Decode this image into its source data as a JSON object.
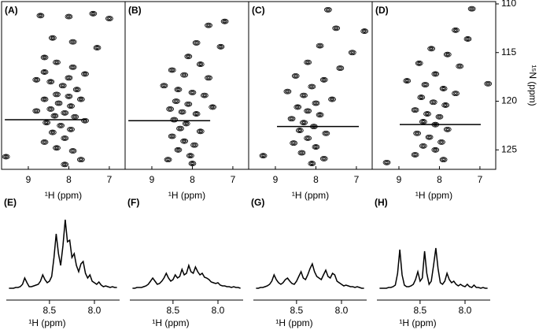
{
  "chart_data": [
    {
      "type": "scatter",
      "title": "(A)",
      "xlabel": "¹H (ppm)",
      "xlim": [
        9.66,
        6.61
      ],
      "xticks": [
        9,
        8,
        7
      ],
      "ylim": [
        127,
        109.76
      ],
      "x": [
        8.7,
        7.4,
        7.0,
        8.0,
        8.4,
        7.9,
        7.3,
        8.6,
        8.3,
        7.9,
        7.6,
        8.8,
        8.45,
        8.15,
        7.8,
        8.3,
        8.0,
        8.6,
        8.25,
        7.95,
        8.45,
        8.1,
        8.35,
        7.85,
        8.55,
        8.2,
        7.95,
        8.4,
        8.1,
        8.6,
        8.3,
        7.9,
        9.55,
        7.7,
        8.1,
        8.6,
        8.0,
        7.7,
        8.8,
        7.6
      ],
      "values": [
        111.2,
        111.0,
        111.5,
        111.3,
        113.5,
        113.9,
        114.5,
        115.5,
        116,
        116.5,
        117.2,
        117.8,
        118,
        118.4,
        118.8,
        119.3,
        119.5,
        119.8,
        120.2,
        120.5,
        120.8,
        121.2,
        121.5,
        121.6,
        122.2,
        122.5,
        122.9,
        123.2,
        123.8,
        124.2,
        124.8,
        125.1,
        125.7,
        126,
        126.5,
        117,
        117.6,
        119.8,
        121,
        122
      ],
      "cross_section": {
        "y": 121.9,
        "x": [
          9.58,
          7.56
        ]
      }
    },
    {
      "type": "scatter",
      "title": "(B)",
      "xlabel": "¹H (ppm)",
      "xlim": [
        9.66,
        6.61
      ],
      "xticks": [
        9,
        8,
        7
      ],
      "ylim": [
        127,
        109.76
      ],
      "x": [
        7.2,
        7.6,
        7.9,
        7.3,
        8.1,
        7.8,
        8.5,
        8.2,
        7.6,
        8.7,
        8.35,
        8.0,
        7.7,
        8.4,
        8.1,
        8.55,
        8.25,
        7.9,
        8.45,
        8.15,
        8.3,
        7.8,
        8.5,
        8.2,
        7.95,
        8.35,
        8.05,
        8.6,
        8.0,
        7.5
      ],
      "values": [
        111.8,
        112.2,
        114.0,
        114.4,
        115.4,
        116.2,
        116.8,
        117.3,
        117.6,
        118.4,
        118.8,
        119.1,
        119.4,
        120.0,
        120.3,
        120.8,
        121.1,
        121.3,
        121.9,
        122.3,
        122.8,
        123.1,
        123.6,
        124.1,
        124.5,
        125.0,
        125.6,
        126.0,
        126.4,
        120.6
      ],
      "cross_section": {
        "y": 122.0,
        "x": [
          9.58,
          7.56
        ]
      }
    },
    {
      "type": "scatter",
      "title": "(C)",
      "xlabel": "¹H (ppm)",
      "xlim": [
        9.66,
        6.61
      ],
      "xticks": [
        9,
        8,
        7
      ],
      "ylim": [
        127,
        109.76
      ],
      "x": [
        7.7,
        7.5,
        6.8,
        7.9,
        7.1,
        8.2,
        7.4,
        8.5,
        7.8,
        8.1,
        8.7,
        8.3,
        7.6,
        8.0,
        8.45,
        8.2,
        7.9,
        8.6,
        8.3,
        8.05,
        8.4,
        7.75,
        8.2,
        8.55,
        8.0,
        8.35,
        9.3,
        7.8,
        8.1
      ],
      "values": [
        110.6,
        112.5,
        112.8,
        114.3,
        115.0,
        116.0,
        116.6,
        117.4,
        117.8,
        118.5,
        119.0,
        119.4,
        119.8,
        120.2,
        120.6,
        121.0,
        121.4,
        121.8,
        122.2,
        122.6,
        123.0,
        123.3,
        123.8,
        124.3,
        124.7,
        125.3,
        125.6,
        125.9,
        126.4
      ],
      "cross_section": {
        "y": 122.6,
        "x": [
          8.96,
          6.94
        ]
      }
    },
    {
      "type": "scatter",
      "title": "(D)",
      "xlabel": "¹H (ppm)",
      "ylabel": "¹⁵N (ppm)",
      "xlim": [
        9.66,
        6.61
      ],
      "xticks": [
        9,
        8,
        7
      ],
      "ylim": [
        127,
        109.76
      ],
      "yticks": [
        110,
        115,
        120,
        125
      ],
      "x": [
        7.2,
        7.6,
        7.3,
        8.2,
        7.8,
        8.5,
        7.5,
        8.1,
        8.8,
        8.35,
        7.9,
        7.6,
        8.45,
        8.15,
        7.85,
        8.6,
        8.3,
        8.0,
        8.4,
        8.1,
        7.8,
        8.55,
        8.25,
        7.95,
        8.4,
        8.1,
        8.6,
        7.9,
        9.3,
        6.8
      ],
      "values": [
        110.5,
        112.7,
        113.6,
        114.6,
        115.2,
        116.1,
        116.4,
        117.2,
        117.9,
        118.3,
        118.7,
        119.2,
        119.6,
        120.1,
        120.4,
        120.9,
        121.3,
        121.6,
        122.1,
        122.4,
        122.9,
        123.3,
        123.7,
        124.2,
        124.6,
        125.0,
        125.5,
        126.0,
        126.3,
        118.2
      ],
      "cross_section": {
        "y": 122.4,
        "x": [
          8.98,
          6.98
        ]
      }
    },
    {
      "type": "line",
      "title": "(E)",
      "xlabel": "¹H (ppm)",
      "xlim": [
        8.98,
        7.72
      ],
      "xticks": [
        8.5,
        {
          "value": 8,
          "label": "8.0"
        }
      ],
      "x": [
        8.95,
        8.925,
        8.9,
        8.875,
        8.85,
        8.825,
        8.8,
        8.775,
        8.75,
        8.725,
        8.7,
        8.675,
        8.65,
        8.625,
        8.6,
        8.575,
        8.55,
        8.525,
        8.5,
        8.475,
        8.45,
        8.425,
        8.4,
        8.375,
        8.35,
        8.325,
        8.3,
        8.275,
        8.25,
        8.225,
        8.2,
        8.175,
        8.15,
        8.125,
        8.1,
        8.075,
        8.05,
        8.025,
        8.0,
        7.975,
        7.95,
        7.925,
        7.9,
        7.875,
        7.85,
        7.825,
        7.8,
        7.775,
        7.75
      ],
      "values": [
        1,
        1,
        1,
        2,
        2,
        3,
        6,
        14,
        8,
        3,
        3,
        4,
        5,
        6,
        10,
        18,
        12,
        8,
        10,
        16,
        40,
        70,
        45,
        30,
        55,
        88,
        60,
        62,
        40,
        45,
        30,
        22,
        32,
        35,
        20,
        14,
        18,
        10,
        8,
        6,
        9,
        5,
        3,
        4,
        3,
        2,
        3,
        2,
        2
      ]
    },
    {
      "type": "line",
      "title": "(F)",
      "xlabel": "¹H (ppm)",
      "xlim": [
        8.98,
        7.72
      ],
      "xticks": [
        8.5,
        {
          "value": 8,
          "label": "8.0"
        }
      ],
      "x": [
        8.95,
        8.925,
        8.9,
        8.875,
        8.85,
        8.825,
        8.8,
        8.775,
        8.75,
        8.725,
        8.7,
        8.675,
        8.65,
        8.625,
        8.6,
        8.575,
        8.55,
        8.525,
        8.5,
        8.475,
        8.45,
        8.425,
        8.4,
        8.375,
        8.35,
        8.325,
        8.3,
        8.275,
        8.25,
        8.225,
        8.2,
        8.175,
        8.15,
        8.125,
        8.1,
        8.075,
        8.05,
        8.025,
        8.0,
        7.975,
        7.95,
        7.925,
        7.9,
        7.875,
        7.85,
        7.825,
        7.8,
        7.775,
        7.75
      ],
      "values": [
        1,
        1,
        2,
        2,
        2,
        3,
        4,
        6,
        10,
        14,
        10,
        6,
        7,
        10,
        14,
        20,
        14,
        10,
        12,
        18,
        14,
        16,
        25,
        18,
        20,
        30,
        22,
        20,
        28,
        22,
        18,
        20,
        15,
        14,
        12,
        9,
        8,
        7,
        8,
        5,
        4,
        4,
        3,
        3,
        2,
        3,
        2,
        2,
        1
      ]
    },
    {
      "type": "line",
      "title": "(G)",
      "xlabel": "¹H (ppm)",
      "xlim": [
        8.98,
        7.72
      ],
      "xticks": [
        8.5,
        {
          "value": 8,
          "label": "8.0"
        }
      ],
      "x": [
        8.95,
        8.925,
        8.9,
        8.875,
        8.85,
        8.825,
        8.8,
        8.775,
        8.75,
        8.725,
        8.7,
        8.675,
        8.65,
        8.625,
        8.6,
        8.575,
        8.55,
        8.525,
        8.5,
        8.475,
        8.45,
        8.425,
        8.4,
        8.375,
        8.35,
        8.325,
        8.3,
        8.275,
        8.25,
        8.225,
        8.2,
        8.175,
        8.15,
        8.125,
        8.1,
        8.075,
        8.05,
        8.025,
        8.0,
        7.975,
        7.95,
        7.925,
        7.9,
        7.875,
        7.85,
        7.825,
        7.8,
        7.775,
        7.75
      ],
      "values": [
        1,
        1,
        2,
        2,
        3,
        4,
        6,
        10,
        18,
        12,
        8,
        6,
        8,
        12,
        14,
        10,
        7,
        6,
        10,
        16,
        22,
        14,
        12,
        18,
        26,
        32,
        22,
        16,
        14,
        12,
        18,
        24,
        16,
        14,
        20,
        18,
        10,
        8,
        6,
        4,
        5,
        4,
        3,
        3,
        2,
        3,
        2,
        1,
        1
      ]
    },
    {
      "type": "line",
      "title": "(H)",
      "xlabel": "¹H (ppm)",
      "xlim": [
        8.98,
        7.72
      ],
      "xticks": [
        8.5,
        {
          "value": 8,
          "label": "8.0"
        }
      ],
      "x": [
        8.95,
        8.925,
        8.9,
        8.875,
        8.85,
        8.825,
        8.8,
        8.775,
        8.75,
        8.725,
        8.7,
        8.675,
        8.65,
        8.625,
        8.6,
        8.575,
        8.55,
        8.525,
        8.5,
        8.475,
        8.45,
        8.425,
        8.4,
        8.375,
        8.35,
        8.325,
        8.3,
        8.275,
        8.25,
        8.225,
        8.2,
        8.175,
        8.15,
        8.125,
        8.1,
        8.075,
        8.05,
        8.025,
        8.0,
        7.975,
        7.95,
        7.925,
        7.9,
        7.875,
        7.85,
        7.825,
        7.8,
        7.775,
        7.75
      ],
      "values": [
        1,
        1,
        1,
        1,
        2,
        2,
        3,
        5,
        20,
        50,
        18,
        5,
        3,
        3,
        4,
        6,
        12,
        22,
        10,
        14,
        48,
        20,
        6,
        10,
        30,
        52,
        26,
        8,
        6,
        10,
        20,
        12,
        8,
        10,
        6,
        4,
        6,
        4,
        3,
        6,
        3,
        2,
        5,
        2,
        2,
        1,
        2,
        1,
        1
      ]
    }
  ]
}
